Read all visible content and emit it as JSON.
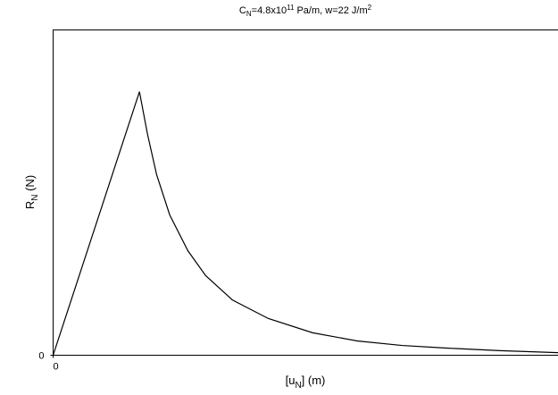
{
  "chart_data": {
    "type": "line",
    "title": [
      "C",
      "N",
      "=4.8x10",
      "11",
      " Pa/m, w=22 J/m",
      "2"
    ],
    "x_label": [
      "[u",
      "N",
      "] (m)"
    ],
    "y_label": [
      "R",
      "N",
      " (N)"
    ],
    "x": [
      0,
      17.1,
      18.7,
      20.5,
      23.1,
      26.7,
      30.2,
      35.5,
      42.6,
      51.4,
      60.2,
      69.1,
      77.9,
      88.5,
      100
    ],
    "values": [
      0,
      81,
      67.9,
      55.5,
      43.1,
      32.1,
      24.5,
      17,
      11.3,
      6.9,
      4.4,
      3,
      2.2,
      1.4,
      0.8
    ],
    "color": "#000000",
    "xlim": [
      0,
      100
    ],
    "ylim": [
      0,
      100
    ],
    "xticks": [
      0
    ],
    "yticks": [
      0
    ],
    "grid": false
  }
}
